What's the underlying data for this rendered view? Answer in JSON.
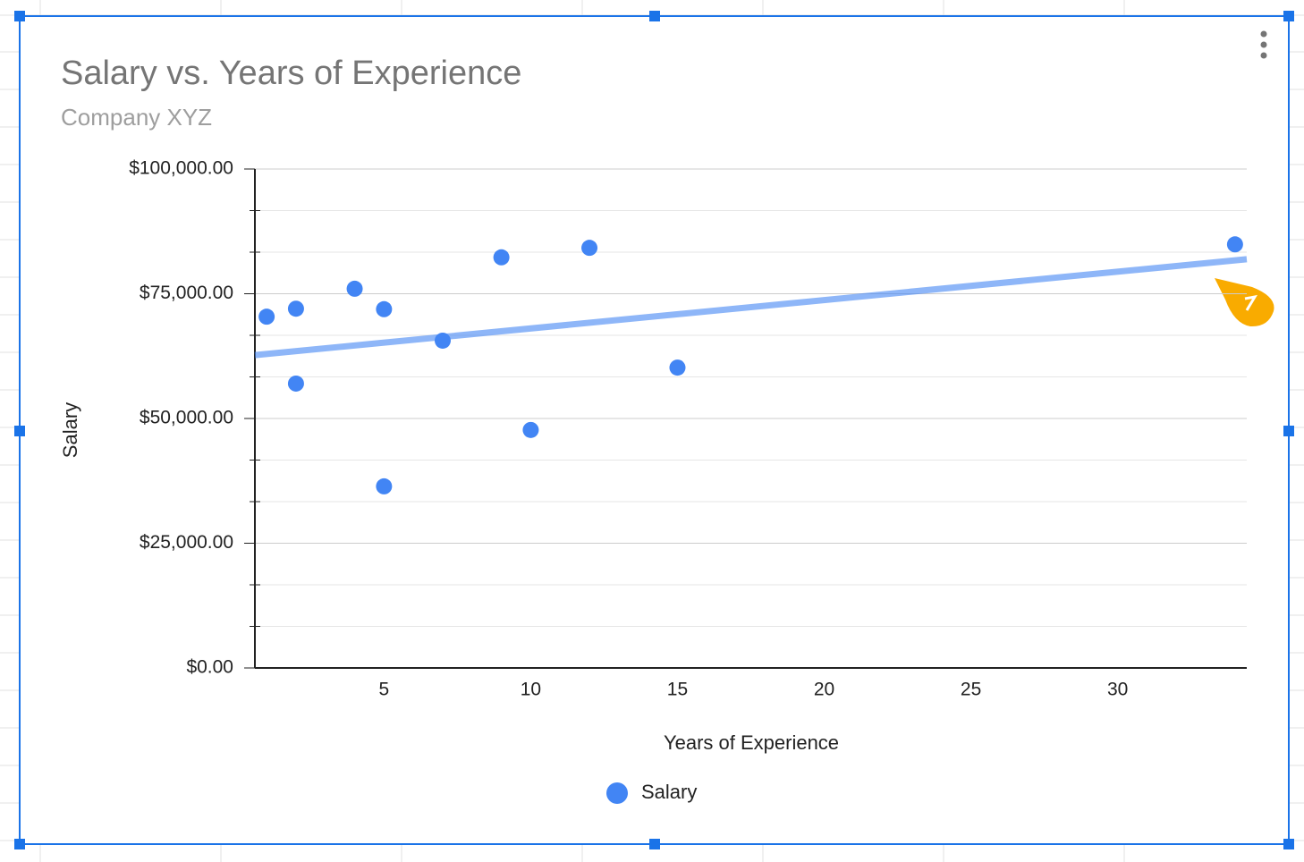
{
  "chart_data": {
    "type": "scatter",
    "title": "Salary vs. Years of Experience",
    "subtitle": "Company XYZ",
    "x_label": "Years of Experience",
    "y_label": "Salary",
    "series": [
      {
        "name": "Salary",
        "color": "#4285f4",
        "x": [
          1,
          2,
          2,
          4,
          5,
          5,
          7,
          9,
          10,
          12,
          15,
          34
        ],
        "values": [
          70400,
          72000,
          57000,
          76000,
          71900,
          36400,
          65600,
          82300,
          47700,
          84200,
          60200,
          84900
        ]
      }
    ],
    "trendline": "linear",
    "xlim": [
      0.6,
      34.4
    ],
    "xticks": [
      5,
      10,
      15,
      20,
      25,
      30
    ],
    "ylim": [
      0,
      100000
    ],
    "yticks": [
      {
        "value": 0,
        "label": "$0.00"
      },
      {
        "value": 25000,
        "label": "$25,000.00"
      },
      {
        "value": 50000,
        "label": "$50,000.00"
      },
      {
        "value": 75000,
        "label": "$75,000.00"
      },
      {
        "value": 100000,
        "label": "$100,000.00"
      }
    ],
    "grid": true,
    "legend": "bottom"
  }
}
